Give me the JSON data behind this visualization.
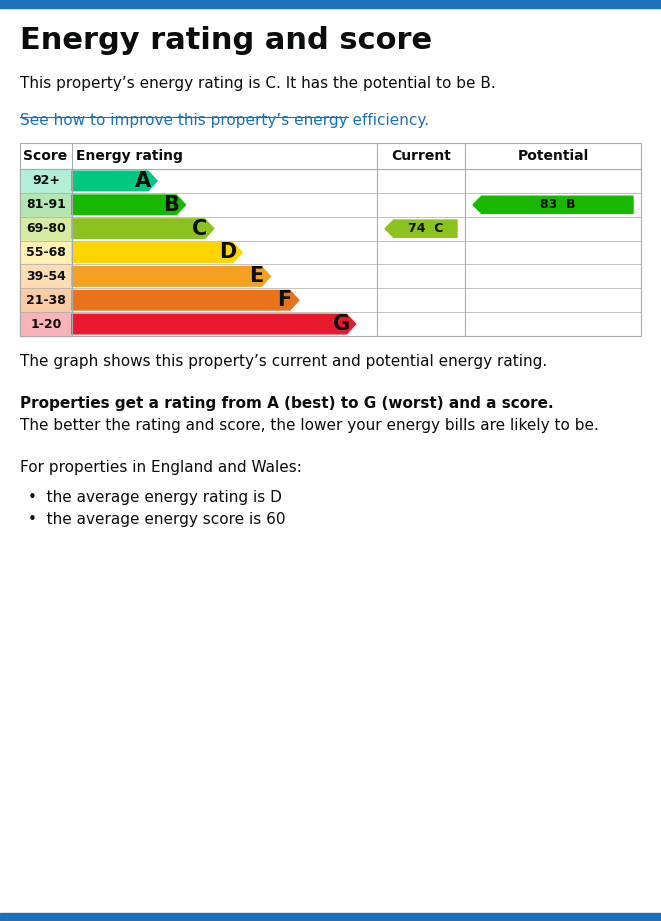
{
  "title": "Energy rating and score",
  "subtitle": "This property’s energy rating is C. It has the potential to be B.",
  "link_text": "See how to improve this property’s energy efficiency.",
  "ratings": [
    "A",
    "B",
    "C",
    "D",
    "E",
    "F",
    "G"
  ],
  "score_labels": [
    "92+",
    "81-91",
    "69-80",
    "55-68",
    "39-54",
    "21-38",
    "1-20"
  ],
  "colors": [
    "#00c781",
    "#19b800",
    "#8cc21d",
    "#ffd500",
    "#f4a020",
    "#e8731a",
    "#e8192c"
  ],
  "score_bg_colors": [
    "#b3eed9",
    "#b3e6b3",
    "#d6eaa0",
    "#fff2b3",
    "#fcdcb3",
    "#f9cca3",
    "#f9b3b8"
  ],
  "bar_widths": [
    1.5,
    2.0,
    2.5,
    3.0,
    3.5,
    4.0,
    5.0
  ],
  "current_rating": "C",
  "current_score": 74,
  "current_band": 2,
  "current_color": "#8cc21d",
  "potential_rating": "B",
  "potential_score": 83,
  "potential_band": 1,
  "potential_color": "#19b800",
  "footer_text1": "The graph shows this property’s current and potential energy rating.",
  "footer_bold": "Properties get a rating from A (best) to G (worst) and a score.",
  "footer_text2": "The better the rating and score, the lower your energy bills are likely to be.",
  "footer_text3": "For properties in England and Wales:",
  "bullet1": "the average energy rating is D",
  "bullet2": "the average energy score is 60",
  "top_bar_color": "#1d70b8",
  "bottom_bar_color": "#1d70b8",
  "link_color": "#1d70b8",
  "text_color": "#0b0c0c",
  "background_color": "#ffffff"
}
